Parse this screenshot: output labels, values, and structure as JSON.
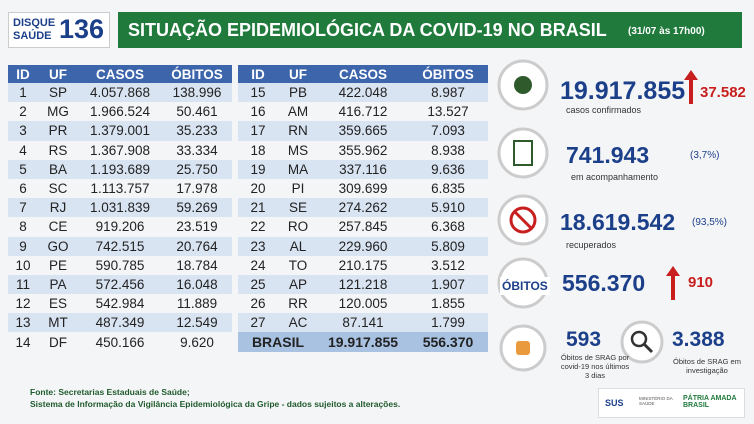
{
  "header": {
    "logo_top": "DISQUE",
    "logo_bottom": "SAÚDE",
    "logo_number": "136",
    "title": "SITUAÇÃO EPIDEMIOLÓGICA DA COVID-19 NO BRASIL",
    "date": "(31/07 às 17h00)"
  },
  "table": {
    "columns": [
      "ID",
      "UF",
      "CASOS",
      "ÓBITOS"
    ],
    "left_rows": [
      [
        "1",
        "SP",
        "4.057.868",
        "138.996"
      ],
      [
        "2",
        "MG",
        "1.966.524",
        "50.461"
      ],
      [
        "3",
        "PR",
        "1.379.001",
        "35.233"
      ],
      [
        "4",
        "RS",
        "1.367.908",
        "33.334"
      ],
      [
        "5",
        "BA",
        "1.193.689",
        "25.750"
      ],
      [
        "6",
        "SC",
        "1.113.757",
        "17.978"
      ],
      [
        "7",
        "RJ",
        "1.031.839",
        "59.269"
      ],
      [
        "8",
        "CE",
        "919.206",
        "23.519"
      ],
      [
        "9",
        "GO",
        "742.515",
        "20.764"
      ],
      [
        "10",
        "PE",
        "590.785",
        "18.784"
      ],
      [
        "11",
        "PA",
        "572.456",
        "16.048"
      ],
      [
        "12",
        "ES",
        "542.984",
        "11.889"
      ],
      [
        "13",
        "MT",
        "487.349",
        "12.549"
      ],
      [
        "14",
        "DF",
        "450.166",
        "9.620"
      ]
    ],
    "right_rows": [
      [
        "15",
        "PB",
        "422.048",
        "8.987"
      ],
      [
        "16",
        "AM",
        "416.712",
        "13.527"
      ],
      [
        "17",
        "RN",
        "359.665",
        "7.093"
      ],
      [
        "18",
        "MS",
        "355.962",
        "8.938"
      ],
      [
        "19",
        "MA",
        "337.116",
        "9.636"
      ],
      [
        "20",
        "PI",
        "309.699",
        "6.835"
      ],
      [
        "21",
        "SE",
        "274.262",
        "5.910"
      ],
      [
        "22",
        "RO",
        "257.845",
        "6.368"
      ],
      [
        "23",
        "AL",
        "229.960",
        "5.809"
      ],
      [
        "24",
        "TO",
        "210.175",
        "3.512"
      ],
      [
        "25",
        "AP",
        "121.218",
        "1.907"
      ],
      [
        "26",
        "RR",
        "120.005",
        "1.855"
      ],
      [
        "27",
        "AC",
        "87.141",
        "1.799"
      ]
    ],
    "total": [
      "BRASIL",
      "19.917.855",
      "556.370"
    ]
  },
  "stats": {
    "confirmed": {
      "value": "19.917.855",
      "label": "casos confirmados",
      "increase": "37.582"
    },
    "monitoring": {
      "value": "741.943",
      "percent": "(3,7%)",
      "label": "em acompanhamento"
    },
    "recovered": {
      "value": "18.619.542",
      "percent": "(93,5%)",
      "label": "recuperados"
    },
    "deaths": {
      "title": "ÓBITOS",
      "value": "556.370",
      "increase": "910"
    },
    "srag_recent": {
      "value": "593",
      "label": "Óbitos de SRAG por covid-19 nos últimos 3 dias"
    },
    "srag_investigation": {
      "value": "3.388",
      "label": "Óbitos de SRAG em investigação"
    }
  },
  "footer": {
    "line1": "Fonte: Secretarias Estaduais de Saúde;",
    "line2": "Sistema de Informação da Vigilância Epidemiológica da Gripe - dados sujeitos a alterações.",
    "logo_sus": "SUS",
    "logo_ministry": "MINISTÉRIO DA SAÚDE",
    "logo_gov": "PÁTRIA AMADA BRASIL"
  }
}
